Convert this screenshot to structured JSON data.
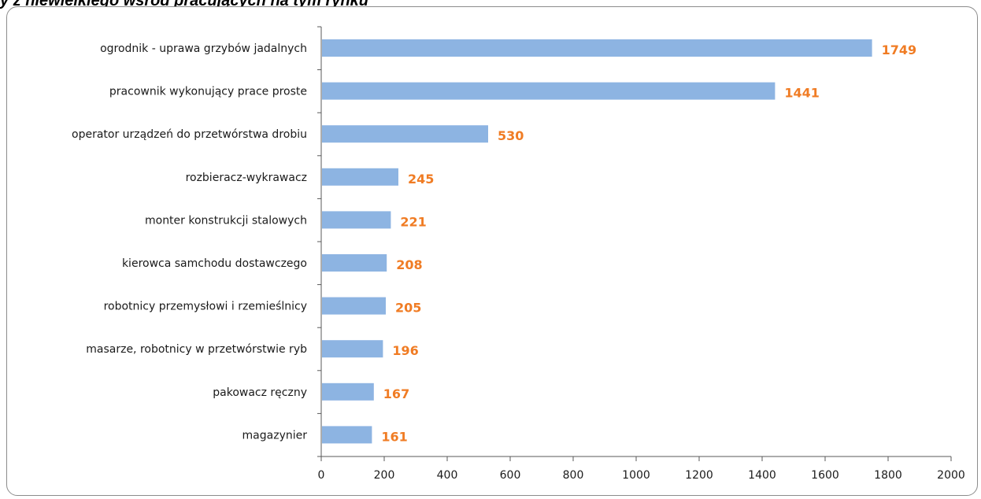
{
  "header": {
    "title": "y z niewielkiego wśród pracujących na tym rynku"
  },
  "colors": {
    "bar": "#8DB4E2",
    "value_label": "#F07C24",
    "axis": "#595959"
  },
  "chart_data": {
    "type": "bar",
    "orientation": "horizontal",
    "categories": [
      "ogrodnik - uprawa grzybów jadalnych",
      "pracownik wykonujący prace proste",
      "operator urządzeń do przetwórstwa drobiu",
      "rozbieracz-wykrawacz",
      "monter konstrukcji stalowych",
      "kierowca samchodu dostawczego",
      "robotnicy przemysłowi i rzemieślnicy",
      "masarze, robotnicy w przetwórstwie ryb",
      "pakowacz ręczny",
      "magazynier"
    ],
    "values": [
      1749,
      1441,
      530,
      245,
      221,
      208,
      205,
      196,
      167,
      161
    ],
    "value_labels": [
      "1749",
      "1441",
      "530",
      "245",
      "221",
      "208",
      "205",
      "196",
      "167",
      "161"
    ],
    "xlim": [
      0,
      2000
    ],
    "xticks": [
      0,
      200,
      400,
      600,
      800,
      1000,
      1200,
      1400,
      1600,
      1800,
      2000
    ],
    "xtick_labels": [
      "0",
      "200",
      "400",
      "600",
      "800",
      "1000",
      "1200",
      "1400",
      "1600",
      "1800",
      "2000"
    ],
    "grid": false,
    "legend": "none"
  }
}
